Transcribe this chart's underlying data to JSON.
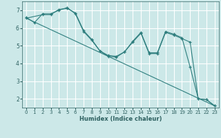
{
  "xlabel": "Humidex (Indice chaleur)",
  "bg_color": "#cce8e8",
  "grid_color": "#ffffff",
  "line_color": "#2d7d7d",
  "xlim": [
    -0.5,
    23.5
  ],
  "ylim": [
    1.5,
    7.5
  ],
  "yticks": [
    2,
    3,
    4,
    5,
    6,
    7
  ],
  "xticks": [
    0,
    1,
    2,
    3,
    4,
    5,
    6,
    7,
    8,
    9,
    10,
    11,
    12,
    13,
    14,
    15,
    16,
    17,
    18,
    19,
    20,
    21,
    22,
    23
  ],
  "lines": [
    {
      "x": [
        0,
        1,
        2,
        3,
        4,
        5,
        6,
        7,
        8,
        9,
        10,
        11,
        12,
        13,
        14,
        15,
        16,
        17,
        18,
        19,
        20,
        21,
        22,
        23
      ],
      "y": [
        6.6,
        6.3,
        6.8,
        6.8,
        7.0,
        7.15,
        6.8,
        5.8,
        5.3,
        4.7,
        4.4,
        4.35,
        4.65,
        5.2,
        5.7,
        4.55,
        4.55,
        5.75,
        5.6,
        5.4,
        5.2,
        2.0,
        1.95,
        1.6
      ],
      "markers": true
    },
    {
      "x": [
        0,
        2,
        3,
        4,
        5,
        6,
        7,
        8,
        9,
        10,
        11,
        12,
        13,
        14,
        15,
        16,
        17,
        18,
        19,
        20,
        21,
        22,
        23
      ],
      "y": [
        6.55,
        6.75,
        6.75,
        7.05,
        7.1,
        6.85,
        5.85,
        5.35,
        4.7,
        4.45,
        4.4,
        4.65,
        5.25,
        5.75,
        4.6,
        4.6,
        5.8,
        5.65,
        5.45,
        3.8,
        2.0,
        1.95,
        1.6
      ],
      "markers": true
    },
    {
      "x": [
        0,
        23
      ],
      "y": [
        6.55,
        1.6
      ],
      "markers": false
    }
  ]
}
